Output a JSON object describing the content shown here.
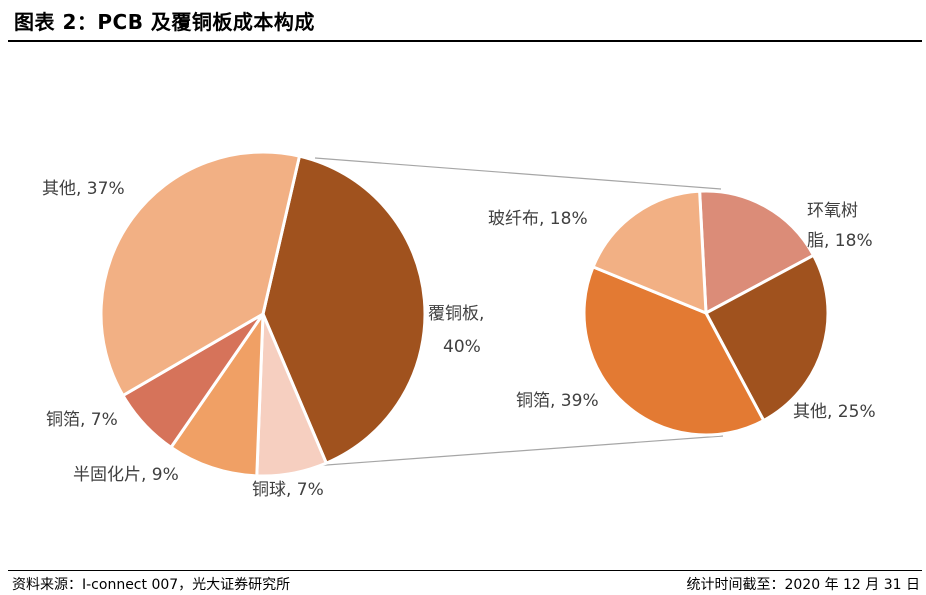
{
  "page": {
    "title": "图表 2：PCB 及覆铜板成本构成",
    "source": "资料来源：I-connect 007，光大证券研究所",
    "date_note": "统计时间截至：2020 年 12 月 31 日"
  },
  "chart_data": [
    {
      "type": "pie",
      "slices": [
        {
          "label": "覆铜板, 40%",
          "value": 40,
          "color": "#a0521e"
        },
        {
          "label": "铜球, 7%",
          "value": 7,
          "color": "#f6cfc0"
        },
        {
          "label": "半固化片, 9%",
          "value": 9,
          "color": "#f0a065"
        },
        {
          "label": "铜箔, 7%",
          "value": 7,
          "color": "#d6735a"
        },
        {
          "label": "其他, 37%",
          "value": 37,
          "color": "#f2b084"
        }
      ]
    },
    {
      "type": "pie",
      "slices": [
        {
          "label": "环氧树脂, 18%",
          "value": 18,
          "color": "#db8c78"
        },
        {
          "label": "其他, 25%",
          "value": 25,
          "color": "#a0521e"
        },
        {
          "label": "铜箔, 39%",
          "value": 39,
          "color": "#e37a33"
        },
        {
          "label": "玻纤布, 18%",
          "value": 18,
          "color": "#f2b084"
        }
      ]
    }
  ]
}
